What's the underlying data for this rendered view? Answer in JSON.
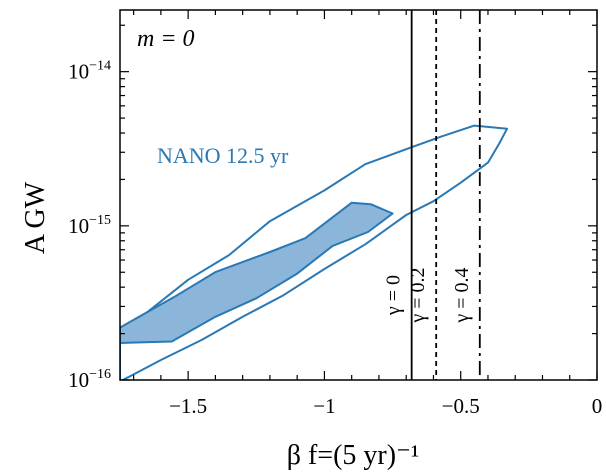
{
  "chart_data": {
    "type": "area",
    "annotation": "m = 0",
    "xlabel": "β f=(5 yr)⁻¹",
    "ylabel": "A GW",
    "xlim": [
      -1.75,
      0
    ],
    "ylim_log10": [
      -16,
      -13.6
    ],
    "x_ticks": [
      {
        "value": -1.5,
        "label": "−1.5"
      },
      {
        "value": -1.0,
        "label": "−1"
      },
      {
        "value": -0.5,
        "label": "−0.5"
      },
      {
        "value": 0.0,
        "label": "0"
      }
    ],
    "y_ticks": [
      {
        "value": -14,
        "label_base": "10",
        "label_exp": "−14"
      },
      {
        "value": -15,
        "label_base": "10",
        "label_exp": "−15"
      },
      {
        "value": -16,
        "label_base": "10",
        "label_exp": "−16"
      }
    ],
    "contour_label": "NANO 12.5 yr",
    "colors": {
      "contour": "#2a78b4",
      "fill": "#8bb6da",
      "axes": "#000000"
    },
    "series": [
      {
        "kind": "outer-contour",
        "points_x_log10y": [
          [
            -1.75,
            -15.72
          ],
          [
            -1.65,
            -15.56
          ],
          [
            -1.5,
            -15.35
          ],
          [
            -1.35,
            -15.19
          ],
          [
            -1.2,
            -14.97
          ],
          [
            -1.0,
            -14.77
          ],
          [
            -0.85,
            -14.6
          ],
          [
            -0.68,
            -14.49
          ],
          [
            -0.57,
            -14.42
          ],
          [
            -0.45,
            -14.35
          ],
          [
            -0.33,
            -14.37
          ],
          [
            -0.36,
            -14.47
          ],
          [
            -0.4,
            -14.59
          ],
          [
            -0.5,
            -14.72
          ],
          [
            -0.6,
            -14.84
          ],
          [
            -0.7,
            -14.93
          ],
          [
            -0.85,
            -15.12
          ],
          [
            -1.0,
            -15.28
          ],
          [
            -1.15,
            -15.45
          ],
          [
            -1.3,
            -15.59
          ],
          [
            -1.45,
            -15.74
          ],
          [
            -1.6,
            -15.87
          ],
          [
            -1.75,
            -16.01
          ]
        ]
      },
      {
        "kind": "inner-filled-region",
        "points_x_log10y": [
          [
            -1.75,
            -15.66
          ],
          [
            -1.69,
            -15.6
          ],
          [
            -1.55,
            -15.46
          ],
          [
            -1.4,
            -15.3
          ],
          [
            -1.2,
            -15.17
          ],
          [
            -1.07,
            -15.08
          ],
          [
            -0.9,
            -14.85
          ],
          [
            -0.83,
            -14.86
          ],
          [
            -0.75,
            -14.92
          ],
          [
            -0.84,
            -15.04
          ],
          [
            -0.97,
            -15.13
          ],
          [
            -1.1,
            -15.31
          ],
          [
            -1.25,
            -15.47
          ],
          [
            -1.4,
            -15.59
          ],
          [
            -1.56,
            -15.75
          ],
          [
            -1.75,
            -15.76
          ]
        ]
      }
    ],
    "vertical_lines": [
      {
        "x": -0.68,
        "style": "solid",
        "label": "γ = 0"
      },
      {
        "x": -0.59,
        "style": "dotted",
        "label": "γ = 0.2"
      },
      {
        "x": -0.43,
        "style": "dashdot",
        "label": "γ = 0.4"
      }
    ]
  }
}
